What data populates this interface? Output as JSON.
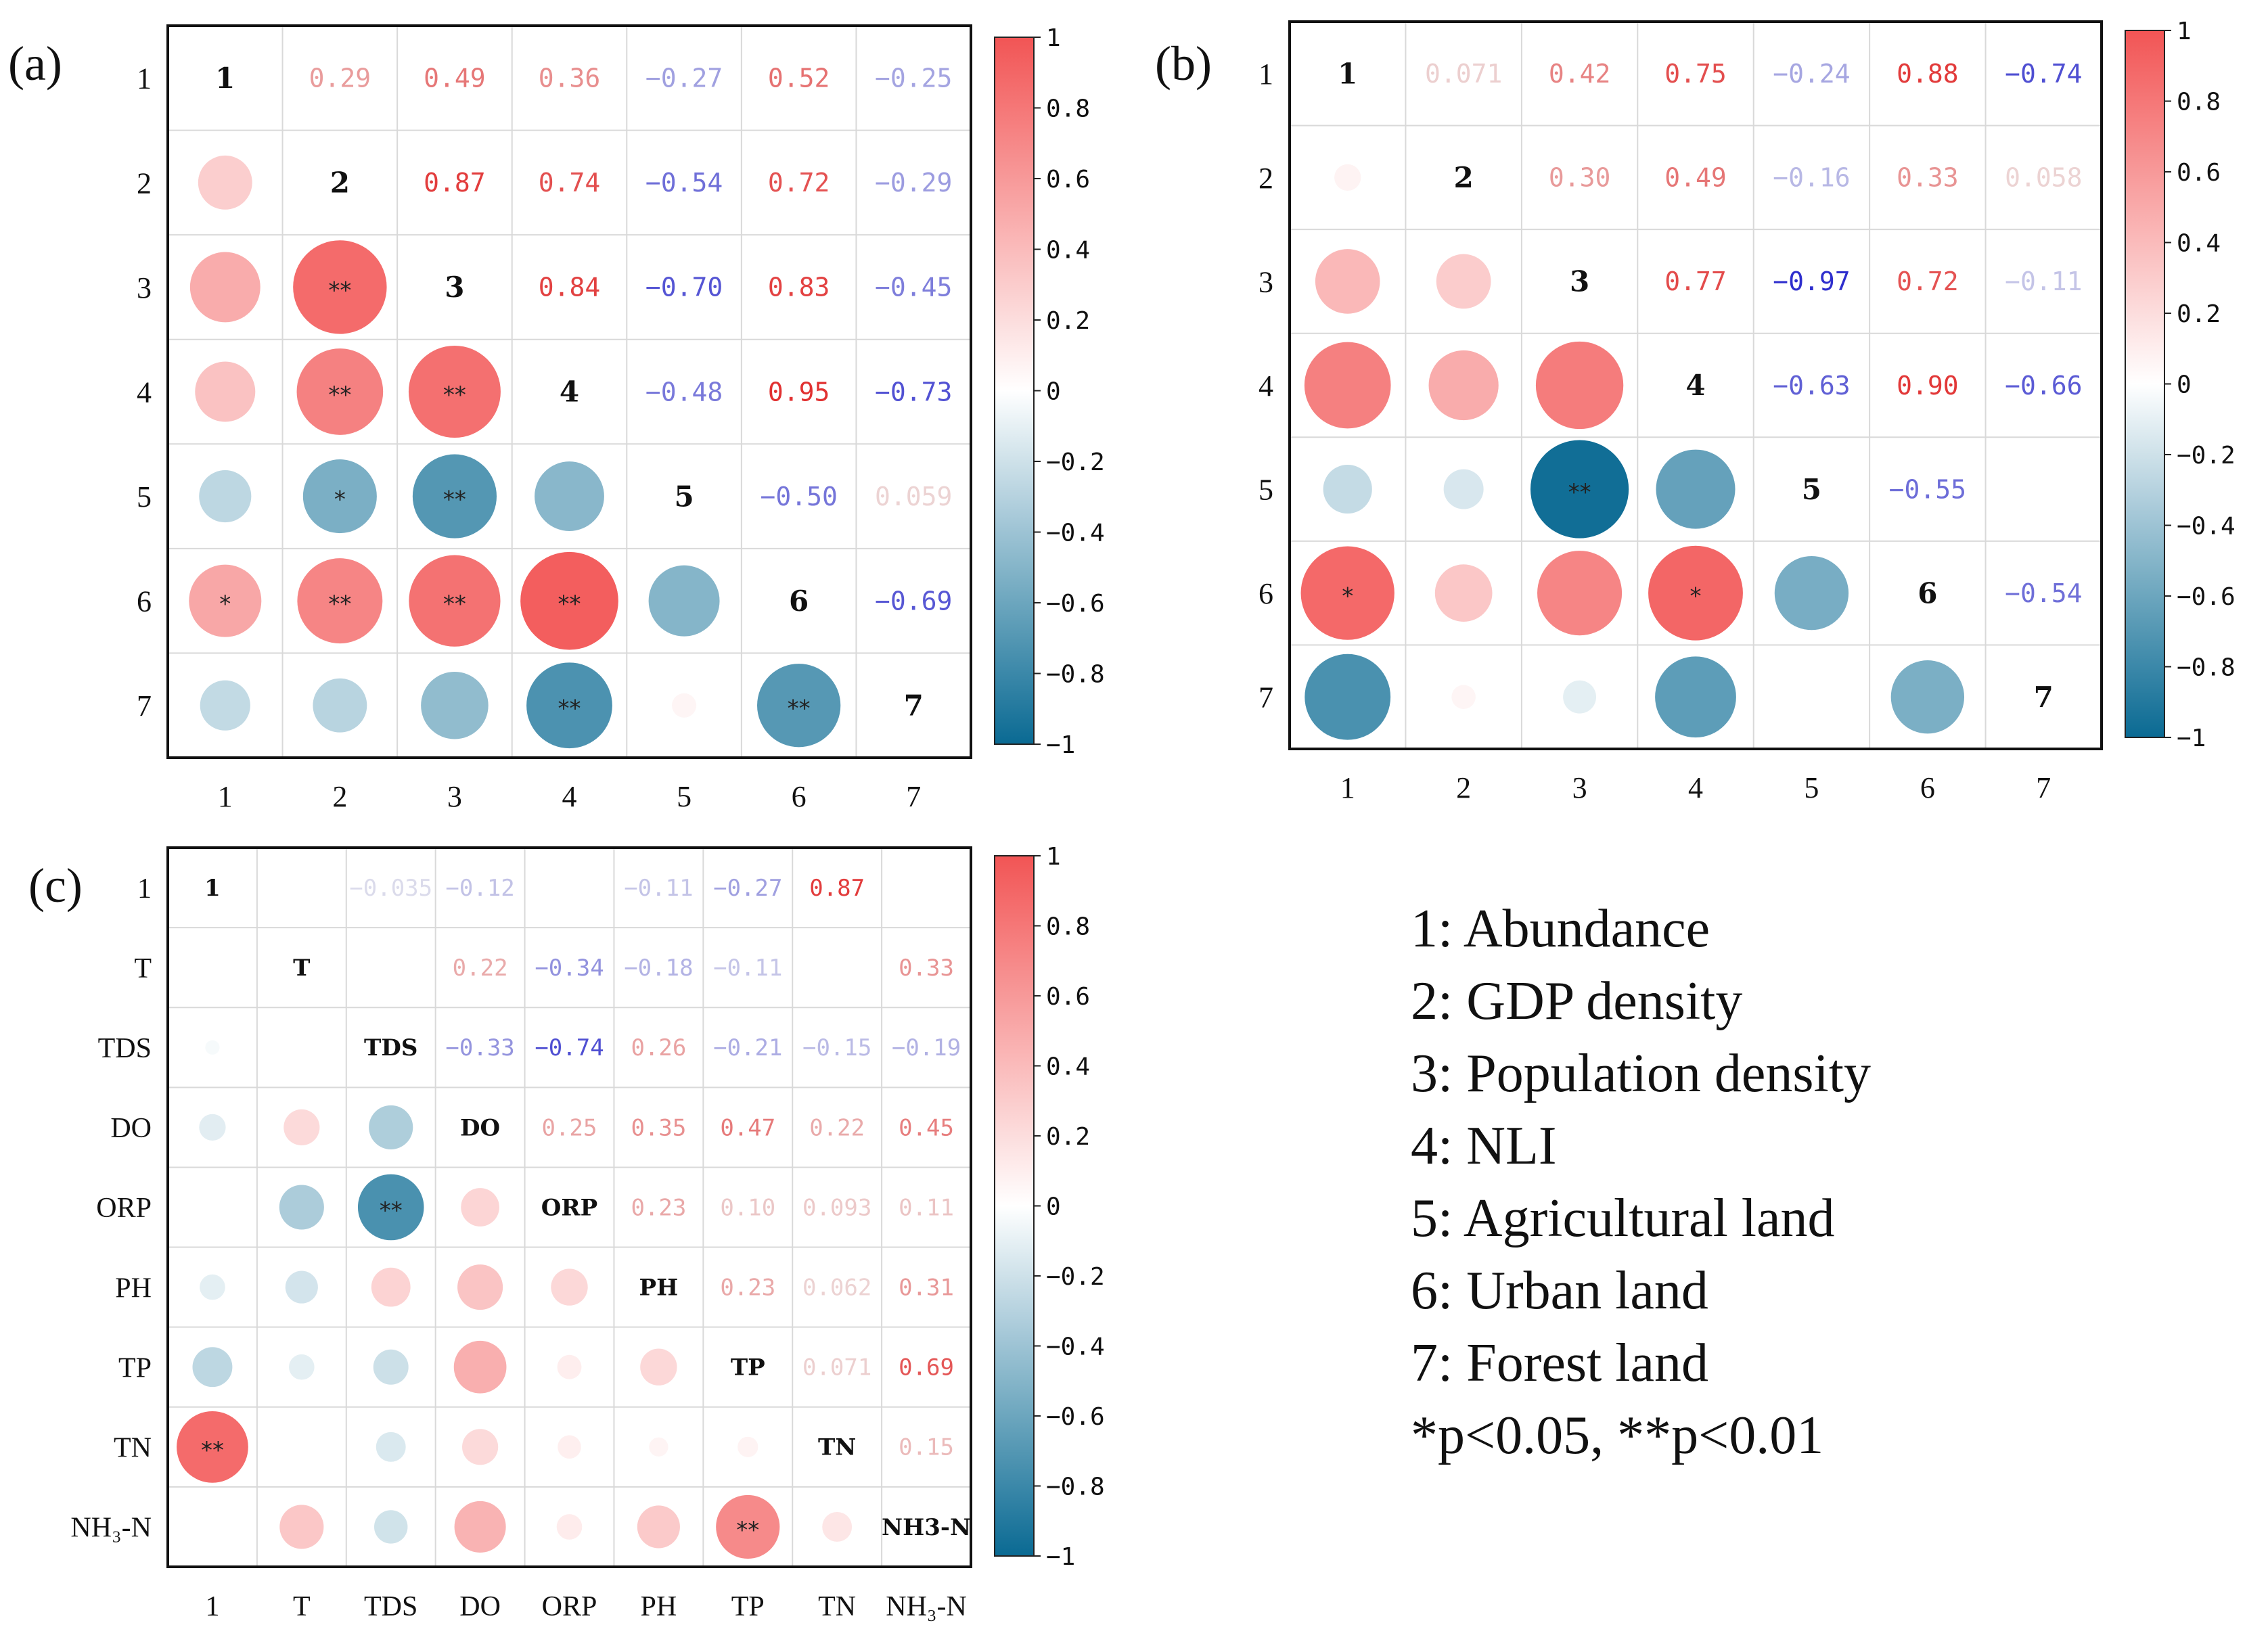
{
  "colors": {
    "positive": "#f25555",
    "negative": "#0a6a93",
    "zero": "#ffffff",
    "neg_text": "#2a2acc",
    "pos_text": "#e12a2a"
  },
  "legend": {
    "items": [
      "1: Abundance",
      "2: GDP density",
      "3: Population density",
      "4: NLI",
      "5: Agricultural land",
      "6: Urban land",
      "7: Forest land"
    ],
    "significance_note": "*p<0.05, **p<0.01"
  },
  "chart_data": [
    {
      "type": "heatmap",
      "panel_label": "(a)",
      "labels": [
        "1",
        "2",
        "3",
        "4",
        "5",
        "6",
        "7"
      ],
      "colorbar_ticks": [
        "1",
        "0.8",
        "0.6",
        "0.4",
        "0.2",
        "0",
        "−0.2",
        "−0.4",
        "−0.6",
        "−0.8",
        "−1"
      ],
      "value_range": [
        -1,
        1
      ],
      "matrix": [
        [
          1,
          0.29,
          0.49,
          0.36,
          -0.27,
          0.52,
          -0.25
        ],
        [
          0.29,
          1,
          0.87,
          0.74,
          -0.54,
          0.72,
          -0.29
        ],
        [
          0.49,
          0.87,
          1,
          0.84,
          -0.7,
          0.83,
          -0.45
        ],
        [
          0.36,
          0.74,
          0.84,
          1,
          -0.48,
          0.95,
          -0.73
        ],
        [
          -0.27,
          -0.54,
          -0.7,
          -0.48,
          1,
          -0.5,
          0.059
        ],
        [
          0.52,
          0.72,
          0.83,
          0.95,
          -0.5,
          1,
          -0.69
        ],
        [
          -0.25,
          -0.29,
          -0.45,
          -0.73,
          0.059,
          -0.69,
          1
        ]
      ],
      "upper_text": [
        [
          "",
          "0.29",
          "0.49",
          "0.36",
          "−0.27",
          "0.52",
          "−0.25"
        ],
        [
          "",
          "",
          "0.87",
          "0.74",
          "−0.54",
          "0.72",
          "−0.29"
        ],
        [
          "",
          "",
          "",
          "0.84",
          "−0.70",
          "0.83",
          "−0.45"
        ],
        [
          "",
          "",
          "",
          "",
          "−0.48",
          "0.95",
          "−0.73"
        ],
        [
          "",
          "",
          "",
          "",
          "",
          "−0.50",
          "0.059"
        ],
        [
          "",
          "",
          "",
          "",
          "",
          "",
          "−0.69"
        ],
        [
          "",
          "",
          "",
          "",
          "",
          "",
          ""
        ]
      ],
      "lower_stars": [
        [
          "",
          "",
          "",
          "",
          "",
          "",
          ""
        ],
        [
          "",
          "",
          "",
          "",
          "",
          "",
          ""
        ],
        [
          "",
          "**",
          "",
          "",
          "",
          "",
          ""
        ],
        [
          "",
          "**",
          "**",
          "",
          "",
          "",
          ""
        ],
        [
          "",
          "*",
          "**",
          "",
          "",
          "",
          ""
        ],
        [
          "*",
          "**",
          "**",
          "**",
          "",
          "",
          ""
        ],
        [
          "",
          "",
          "",
          "**",
          "",
          "**",
          ""
        ]
      ]
    },
    {
      "type": "heatmap",
      "panel_label": "(b)",
      "labels": [
        "1",
        "2",
        "3",
        "4",
        "5",
        "6",
        "7"
      ],
      "colorbar_ticks": [
        "1",
        "0.8",
        "0.6",
        "0.4",
        "0.2",
        "0",
        "−0.2",
        "−0.4",
        "−0.6",
        "−0.8",
        "−1"
      ],
      "value_range": [
        -1,
        1
      ],
      "matrix": [
        [
          1,
          0.071,
          0.42,
          0.75,
          -0.24,
          0.88,
          -0.74
        ],
        [
          0.071,
          1,
          0.3,
          0.49,
          -0.16,
          0.33,
          0.058
        ],
        [
          0.42,
          0.3,
          1,
          0.77,
          -0.97,
          0.72,
          -0.11
        ],
        [
          0.75,
          0.49,
          0.77,
          1,
          -0.63,
          0.9,
          -0.66
        ],
        [
          -0.24,
          -0.16,
          -0.97,
          -0.63,
          1,
          -0.55,
          0
        ],
        [
          0.88,
          0.33,
          0.72,
          0.9,
          -0.55,
          1,
          -0.54
        ],
        [
          -0.74,
          0.058,
          -0.11,
          -0.66,
          0,
          -0.54,
          1
        ]
      ],
      "upper_text": [
        [
          "",
          "0.071",
          "0.42",
          "0.75",
          "−0.24",
          "0.88",
          "−0.74"
        ],
        [
          "",
          "",
          "0.30",
          "0.49",
          "−0.16",
          "0.33",
          "0.058"
        ],
        [
          "",
          "",
          "",
          "0.77",
          "−0.97",
          "0.72",
          "−0.11"
        ],
        [
          "",
          "",
          "",
          "",
          "−0.63",
          "0.90",
          "−0.66"
        ],
        [
          "",
          "",
          "",
          "",
          "",
          "−0.55",
          ""
        ],
        [
          "",
          "",
          "",
          "",
          "",
          "",
          "−0.54"
        ],
        [
          "",
          "",
          "",
          "",
          "",
          "",
          ""
        ]
      ],
      "lower_stars": [
        [
          "",
          "",
          "",
          "",
          "",
          "",
          ""
        ],
        [
          "",
          "",
          "",
          "",
          "",
          "",
          ""
        ],
        [
          "",
          "",
          "",
          "",
          "",
          "",
          ""
        ],
        [
          "",
          "",
          "",
          "",
          "",
          "",
          ""
        ],
        [
          "",
          "",
          "**",
          "",
          "",
          "",
          ""
        ],
        [
          "*",
          "",
          "",
          "*",
          "",
          "",
          ""
        ],
        [
          "",
          "",
          "",
          "",
          "",
          "",
          ""
        ]
      ]
    },
    {
      "type": "heatmap",
      "panel_label": "(c)",
      "labels": [
        "1",
        "T",
        "TDS",
        "DO",
        "ORP",
        "PH",
        "TP",
        "TN",
        "NH3-N"
      ],
      "axis_tick_labels": [
        "1",
        "T",
        "TDS",
        "DO",
        "ORP",
        "PH",
        "TP",
        "TN",
        "NH₃-N"
      ],
      "colorbar_ticks": [
        "1",
        "0.8",
        "0.6",
        "0.4",
        "0.2",
        "0",
        "−0.2",
        "−0.4",
        "−0.6",
        "−0.8",
        "−1"
      ],
      "value_range": [
        -1,
        1
      ],
      "matrix": [
        [
          1,
          0,
          -0.035,
          -0.12,
          0,
          -0.11,
          -0.27,
          0.87,
          0
        ],
        [
          0,
          1,
          0,
          0.22,
          -0.34,
          -0.18,
          -0.11,
          0,
          0.33
        ],
        [
          -0.035,
          0,
          1,
          -0.33,
          -0.74,
          0.26,
          -0.21,
          -0.15,
          -0.19
        ],
        [
          -0.12,
          0.22,
          -0.33,
          1,
          0.25,
          0.35,
          0.47,
          0.22,
          0.45
        ],
        [
          0,
          -0.34,
          -0.74,
          0.25,
          1,
          0.23,
          0.1,
          0.093,
          0.11
        ],
        [
          -0.11,
          -0.18,
          0.26,
          0.35,
          0.23,
          1,
          0.23,
          0.062,
          0.31
        ],
        [
          -0.27,
          -0.11,
          -0.21,
          0.47,
          0.1,
          0.23,
          1,
          0.071,
          0.69
        ],
        [
          0.87,
          0,
          -0.15,
          0.22,
          0.093,
          0.062,
          0.071,
          1,
          0.15
        ],
        [
          0,
          0.33,
          -0.19,
          0.45,
          0.11,
          0.31,
          0.69,
          0.15,
          1
        ]
      ],
      "upper_text": [
        [
          "",
          "",
          "−0.035",
          "−0.12",
          "",
          "−0.11",
          "−0.27",
          "0.87",
          ""
        ],
        [
          "",
          "",
          "",
          "0.22",
          "−0.34",
          "−0.18",
          "−0.11",
          "",
          "0.33"
        ],
        [
          "",
          "",
          "",
          "−0.33",
          "−0.74",
          "0.26",
          "−0.21",
          "−0.15",
          "−0.19"
        ],
        [
          "",
          "",
          "",
          "",
          "0.25",
          "0.35",
          "0.47",
          "0.22",
          "0.45"
        ],
        [
          "",
          "",
          "",
          "",
          "",
          "0.23",
          "0.10",
          "0.093",
          "0.11"
        ],
        [
          "",
          "",
          "",
          "",
          "",
          "",
          "0.23",
          "0.062",
          "0.31"
        ],
        [
          "",
          "",
          "",
          "",
          "",
          "",
          "",
          "0.071",
          "0.69"
        ],
        [
          "",
          "",
          "",
          "",
          "",
          "",
          "",
          "",
          "0.15"
        ],
        [
          "",
          "",
          "",
          "",
          "",
          "",
          "",
          "",
          ""
        ]
      ],
      "lower_stars": [
        [
          "",
          "",
          "",
          "",
          "",
          "",
          "",
          "",
          ""
        ],
        [
          "",
          "",
          "",
          "",
          "",
          "",
          "",
          "",
          ""
        ],
        [
          "",
          "",
          "",
          "",
          "",
          "",
          "",
          "",
          ""
        ],
        [
          "",
          "",
          "",
          "",
          "",
          "",
          "",
          "",
          ""
        ],
        [
          "",
          "",
          "**",
          "",
          "",
          "",
          "",
          "",
          ""
        ],
        [
          "",
          "",
          "",
          "",
          "",
          "",
          "",
          "",
          ""
        ],
        [
          "",
          "",
          "",
          "",
          "",
          "",
          "",
          "",
          ""
        ],
        [
          "**",
          "",
          "",
          "",
          "",
          "",
          "",
          "",
          ""
        ],
        [
          "",
          "",
          "",
          "",
          "",
          "",
          "**",
          "",
          ""
        ]
      ]
    }
  ]
}
